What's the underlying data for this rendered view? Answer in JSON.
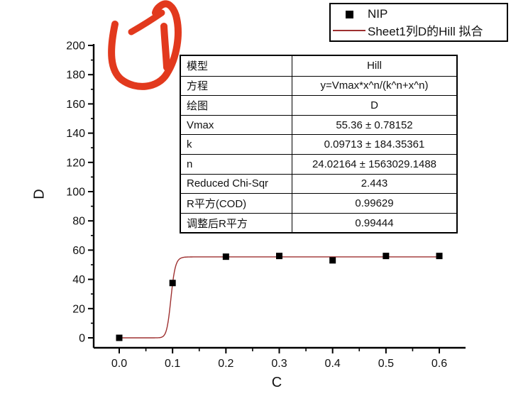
{
  "legend": {
    "entries": [
      {
        "marker": "filled-square",
        "color": "#000000",
        "label": "NIP"
      },
      {
        "marker": "line",
        "color": "#9e3030",
        "label": "Sheet1列D的Hill 拟合"
      }
    ]
  },
  "fit_table": {
    "rows": [
      {
        "label": "模型",
        "value": "Hill"
      },
      {
        "label": "方程",
        "value": "y=Vmax*x^n/(k^n+x^n)"
      },
      {
        "label": "绘图",
        "value": "D"
      },
      {
        "label": "Vmax",
        "value": "55.36 ± 0.78152"
      },
      {
        "label": "k",
        "value": "0.09713 ± 184.35361"
      },
      {
        "label": "n",
        "value": "24.02164 ± 1563029.1488"
      },
      {
        "label": "Reduced Chi-Sqr",
        "value": "2.443"
      },
      {
        "label": "R平方(COD)",
        "value": "0.99629"
      },
      {
        "label": "调整后R平方",
        "value": "0.99444"
      }
    ]
  },
  "annotation": {
    "type": "hand-drawn-circled-1",
    "color": "#e2391d"
  },
  "chart_data": {
    "type": "scatter",
    "title": "",
    "xlabel": "C",
    "ylabel": "D",
    "xlim": [
      -0.048,
      0.65
    ],
    "ylim": [
      -7,
      203
    ],
    "x_major_ticks": [
      0.0,
      0.1,
      0.2,
      0.3,
      0.4,
      0.5,
      0.6
    ],
    "x_minor_ticks": [
      0.05,
      0.15,
      0.25,
      0.35,
      0.45,
      0.55,
      0.65
    ],
    "y_major_ticks": [
      0,
      20,
      40,
      60,
      80,
      100,
      120,
      140,
      160,
      180,
      200
    ],
    "y_minor_step": 10,
    "grid": false,
    "legend_position": "top-right",
    "series": [
      {
        "name": "NIP",
        "type": "scatter",
        "marker": "filled-square",
        "color": "#000000",
        "x": [
          0.0,
          0.1,
          0.2,
          0.3,
          0.4,
          0.5,
          0.6
        ],
        "y": [
          0,
          37.5,
          55.5,
          56,
          53,
          56,
          56
        ]
      },
      {
        "name": "Sheet1列D的Hill 拟合",
        "type": "line",
        "color": "#9e3030",
        "fit_model": "Hill",
        "equation": "y=Vmax*x^n/(k^n+x^n)",
        "params": {
          "Vmax": 55.36,
          "k": 0.09713,
          "n": 24.02164
        },
        "x_range": [
          0.0,
          0.6
        ]
      }
    ],
    "fit_statistics": {
      "reduced_chi_sqr": 2.443,
      "r_squared_cod": 0.99629,
      "adj_r_squared": 0.99444
    }
  }
}
